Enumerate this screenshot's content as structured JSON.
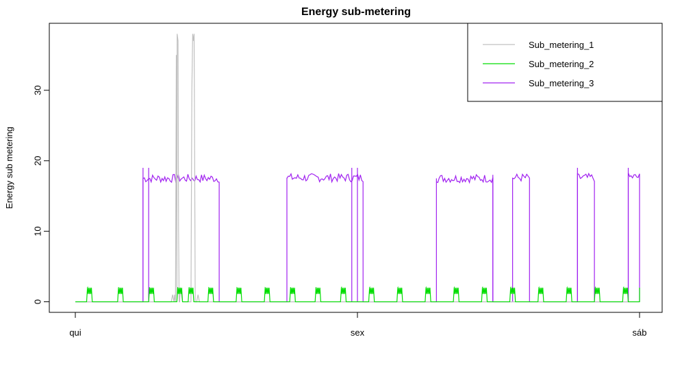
{
  "chart_data": {
    "type": "line",
    "title": "Energy sub-metering",
    "xlabel": "",
    "ylabel": "Energy sub metering",
    "xlim": [
      0,
      2
    ],
    "ylim": [
      -1.5,
      39.5
    ],
    "x_ticks": [
      {
        "value": 0,
        "label": "qui"
      },
      {
        "value": 1,
        "label": "sex"
      },
      {
        "value": 2,
        "label": "sáb"
      }
    ],
    "y_ticks": [
      0,
      10,
      20,
      30
    ],
    "grid": false,
    "legend_position": "top-right",
    "series": [
      {
        "name": "Sub_metering_1",
        "color": "#c0c0c0",
        "points": [
          [
            0,
            0
          ],
          [
            0.35,
            0
          ],
          [
            0.352,
            1
          ],
          [
            0.36,
            0
          ],
          [
            0.34,
            0
          ],
          [
            0.345,
            1
          ],
          [
            0.355,
            0
          ],
          [
            0.355,
            0
          ],
          [
            0.358,
            35
          ],
          [
            0.361,
            38
          ],
          [
            0.364,
            37
          ],
          [
            0.366,
            10
          ],
          [
            0.368,
            0
          ],
          [
            0.37,
            0
          ],
          [
            0.372,
            2
          ],
          [
            0.38,
            0
          ],
          [
            0.41,
            0
          ],
          [
            0.413,
            30
          ],
          [
            0.416,
            38
          ],
          [
            0.419,
            37
          ],
          [
            0.421,
            38
          ],
          [
            0.423,
            20
          ],
          [
            0.425,
            0
          ],
          [
            0.43,
            0
          ],
          [
            0.435,
            1
          ],
          [
            0.44,
            0
          ],
          [
            1.0,
            0
          ],
          [
            2.0,
            0
          ]
        ]
      },
      {
        "name": "Sub_metering_2",
        "color": "#00dd00",
        "pulses": [
          0.05,
          0.16,
          0.27,
          0.37,
          0.41,
          0.48,
          0.58,
          0.68,
          0.77,
          0.86,
          0.95,
          1.05,
          1.15,
          1.25,
          1.35,
          1.45,
          1.55,
          1.65,
          1.75,
          1.85,
          1.95
        ],
        "pulse_width": 0.02,
        "pulse_height": 2
      },
      {
        "name": "Sub_metering_3",
        "color": "#a020f0",
        "blocks": [
          [
            0.24,
            0.51,
            17.5
          ],
          [
            0.75,
            1.02,
            17.6
          ],
          [
            1.28,
            1.48,
            17.5
          ],
          [
            1.55,
            1.61,
            17.6
          ],
          [
            1.78,
            1.84,
            17.6
          ],
          [
            1.96,
            2.0,
            17.7
          ]
        ],
        "spikes": [
          [
            0.26,
            19
          ],
          [
            0.24,
            19
          ],
          [
            0.98,
            19
          ],
          [
            1.0,
            19
          ],
          [
            1.78,
            19
          ],
          [
            1.96,
            19
          ],
          [
            1.48,
            18
          ]
        ]
      }
    ]
  }
}
